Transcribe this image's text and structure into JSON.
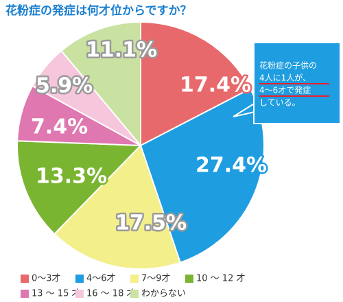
{
  "chart_data": {
    "type": "pie",
    "title": "花粉症の発症は何才位からですか？",
    "categories": [
      "0〜3才",
      "4〜6才",
      "7〜9才",
      "10 〜 12 才",
      "13 〜 15 才",
      "16 〜 18 才",
      "わからない"
    ],
    "values": [
      17.4,
      27.4,
      17.5,
      13.3,
      7.4,
      5.9,
      11.1
    ],
    "value_labels": [
      "17.4%",
      "27.4%",
      "17.5%",
      "13.3%",
      "7.4%",
      "5.9%",
      "11.1%"
    ],
    "colors": [
      "#e8696b",
      "#1e9de0",
      "#f3ef8a",
      "#7ab532",
      "#df77b0",
      "#f6c6dc",
      "#c9e2a1"
    ],
    "annotation": {
      "lines": [
        "花粉症の子供の",
        "4人に1人が、",
        "4〜6才で発症",
        "している。"
      ]
    }
  }
}
